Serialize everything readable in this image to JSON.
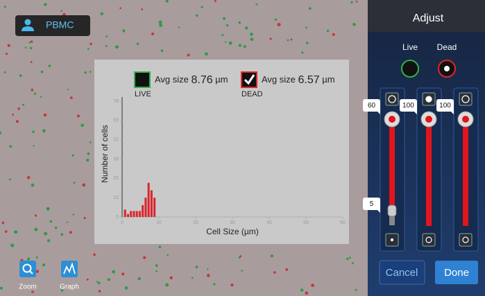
{
  "header": {
    "sample": "PBMC"
  },
  "histogram": {
    "type": "histogram",
    "xlabel": "Cell Size (µm)",
    "ylabel": "Number of cells",
    "bins": [
      0.4,
      1.2,
      2.0,
      2.8,
      3.6,
      4.4,
      5.2,
      6.0,
      6.8,
      7.6,
      8.4,
      9.2
    ],
    "values": [
      5,
      2,
      4,
      4,
      4,
      4,
      8,
      13,
      23,
      18,
      13
    ],
    "color": "#d9262e",
    "xlim": [
      0,
      60
    ],
    "xticks": [
      0,
      10,
      20,
      30,
      40,
      50,
      60
    ],
    "ylim": [
      0,
      78
    ],
    "yticks": [
      0,
      13,
      26,
      39,
      52,
      65,
      78
    ]
  },
  "legend": [
    {
      "label": "LIVE",
      "avg_label": "Avg size",
      "avg": 8.76,
      "unit": "µm",
      "checked": false,
      "color": "#2fb34a"
    },
    {
      "label": "DEAD",
      "avg_label": "Avg size",
      "avg": 6.57,
      "unit": "µm",
      "checked": true,
      "color": "#e0262e"
    }
  ],
  "adjust": {
    "title": "Adjust",
    "channels": [
      "Live",
      "Dead"
    ],
    "sliders": [
      {
        "value": 60,
        "low": 5
      },
      {
        "value": 100
      },
      {
        "value": 100
      }
    ]
  },
  "buttons": {
    "cancel": "Cancel",
    "done": "Done"
  },
  "tools": [
    "Zoom",
    "Graph"
  ]
}
